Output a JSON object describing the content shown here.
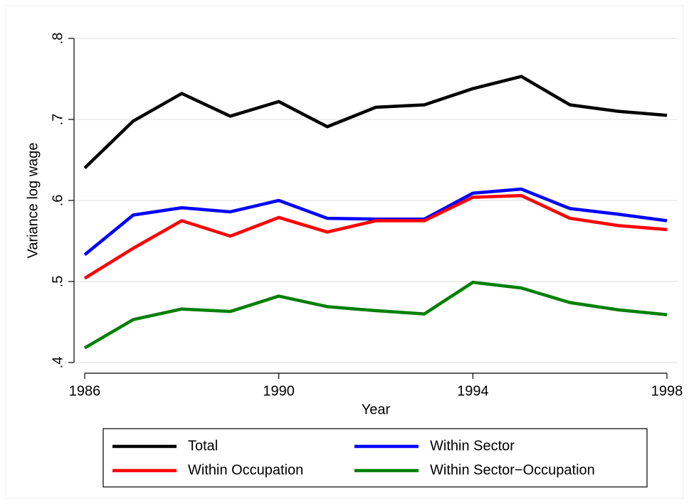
{
  "chart_data": {
    "type": "line",
    "x": [
      1986,
      1987,
      1988,
      1989,
      1990,
      1991,
      1992,
      1993,
      1994,
      1995,
      1996,
      1997,
      1998
    ],
    "series": [
      {
        "name": "Total",
        "color": "#000000",
        "values": [
          0.64,
          0.698,
          0.732,
          0.704,
          0.722,
          0.691,
          0.715,
          0.718,
          0.738,
          0.753,
          0.718,
          0.71,
          0.705
        ]
      },
      {
        "name": "Within Sector",
        "color": "#0000ff",
        "values": [
          0.533,
          0.582,
          0.591,
          0.586,
          0.6,
          0.578,
          0.577,
          0.577,
          0.609,
          0.614,
          0.59,
          0.583,
          0.575
        ]
      },
      {
        "name": "Within Occupation",
        "color": "#ff0000",
        "values": [
          0.504,
          0.541,
          0.575,
          0.556,
          0.579,
          0.561,
          0.575,
          0.575,
          0.604,
          0.606,
          0.578,
          0.569,
          0.564
        ]
      },
      {
        "name": "Within Sector−Occupation",
        "color": "#008000",
        "values": [
          0.418,
          0.453,
          0.466,
          0.463,
          0.482,
          0.469,
          0.464,
          0.46,
          0.499,
          0.492,
          0.474,
          0.465,
          0.459
        ]
      }
    ],
    "xlabel": "Year",
    "ylabel": "Variance log wage",
    "xlim": [
      1986,
      1998
    ],
    "xticks": [
      1986,
      1990,
      1994,
      1998
    ],
    "ylim": [
      0.4,
      0.8
    ],
    "yticks": [
      {
        "value": 0.4,
        "label": ".4"
      },
      {
        "value": 0.5,
        "label": ".5"
      },
      {
        "value": 0.6,
        "label": ".6"
      },
      {
        "value": 0.7,
        "label": ".7"
      },
      {
        "value": 0.8,
        "label": ".8"
      }
    ],
    "grid": true,
    "legend": "bottom"
  }
}
